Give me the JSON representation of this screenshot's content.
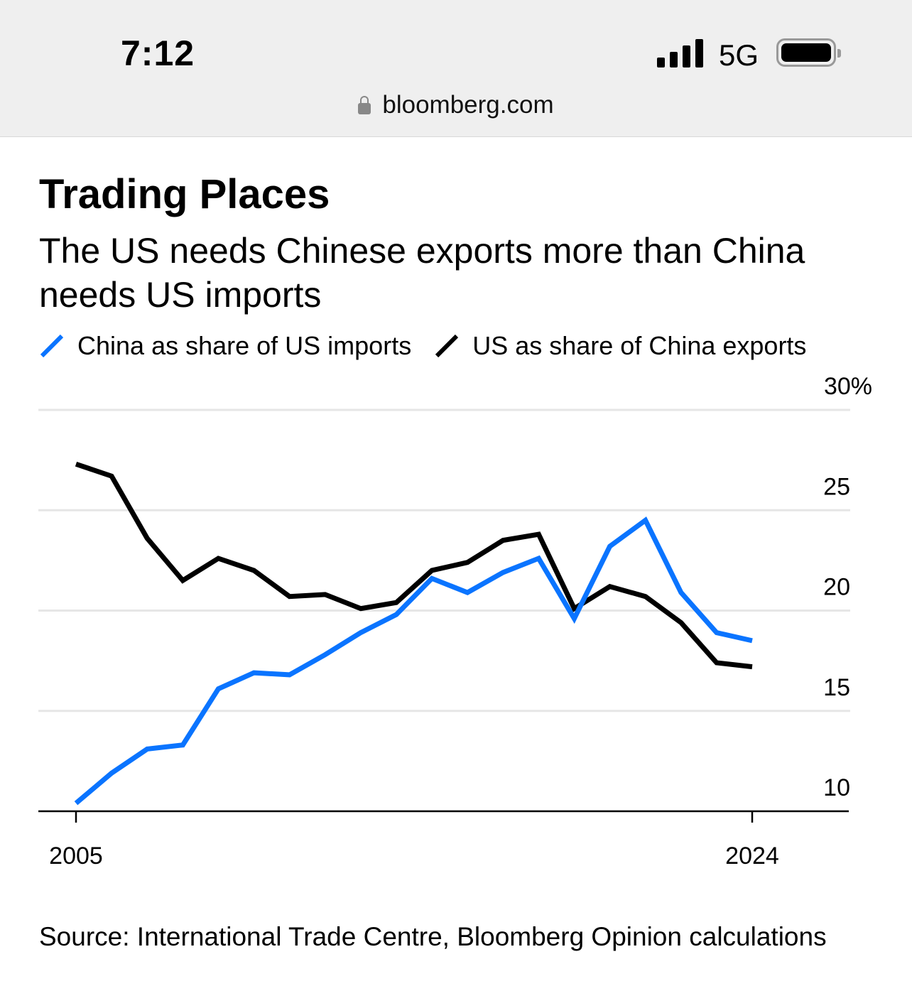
{
  "status_bar": {
    "time": "7:12",
    "network": "5G",
    "url": "bloomberg.com"
  },
  "chart_data": {
    "type": "line",
    "title": "Trading Places",
    "subtitle": "The US needs Chinese exports more than China needs US imports",
    "x": [
      2005,
      2006,
      2007,
      2008,
      2009,
      2010,
      2011,
      2012,
      2013,
      2014,
      2015,
      2016,
      2017,
      2018,
      2019,
      2020,
      2021,
      2022,
      2023,
      2024
    ],
    "series": [
      {
        "name": "China as share of US imports",
        "color": "#0a74ff",
        "values": [
          10.4,
          11.9,
          13.1,
          13.3,
          16.1,
          16.9,
          16.8,
          17.8,
          18.9,
          19.8,
          21.6,
          20.9,
          21.9,
          22.6,
          19.6,
          23.2,
          24.5,
          20.9,
          18.9,
          18.5
        ]
      },
      {
        "name": "US as share of China exports",
        "color": "#000000",
        "values": [
          27.3,
          26.7,
          23.6,
          21.5,
          22.6,
          22.0,
          20.7,
          20.8,
          20.1,
          20.4,
          22.0,
          22.4,
          23.5,
          23.8,
          20.1,
          21.2,
          20.7,
          19.4,
          17.4,
          17.2
        ]
      }
    ],
    "yticks": [
      {
        "value": 30,
        "label": "30%"
      },
      {
        "value": 25,
        "label": "25"
      },
      {
        "value": 20,
        "label": "20"
      },
      {
        "value": 15,
        "label": "15"
      },
      {
        "value": 10,
        "label": "10"
      }
    ],
    "xticks": [
      {
        "value": 2005,
        "label": "2005"
      },
      {
        "value": 2024,
        "label": "2024"
      }
    ],
    "ylim": [
      10,
      30
    ],
    "xlim": [
      2005,
      2024
    ],
    "xlabel": "",
    "ylabel": "",
    "grid": true,
    "legend_position": "top-left",
    "source": "Source: International Trade Centre, Bloomberg Opinion calculations"
  }
}
